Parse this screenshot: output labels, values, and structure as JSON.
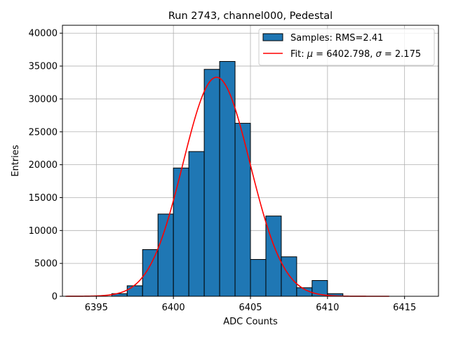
{
  "chart_data": {
    "type": "bar",
    "title": "Run 2743, channel000, Pedestal",
    "xlabel": "ADC Counts",
    "ylabel": "Entries",
    "xlim": [
      6392.8,
      6417.2
    ],
    "ylim": [
      0,
      41200
    ],
    "grid": true,
    "xticks": [
      6395,
      6400,
      6405,
      6410,
      6415
    ],
    "xtick_labels": [
      "6395",
      "6400",
      "6405",
      "6410",
      "6415"
    ],
    "yticks": [
      0,
      5000,
      10000,
      15000,
      20000,
      25000,
      30000,
      35000,
      40000
    ],
    "ytick_labels": [
      "0",
      "5000",
      "10000",
      "15000",
      "20000",
      "25000",
      "30000",
      "35000",
      "40000"
    ],
    "bin_edges": [
      6395,
      6396,
      6397,
      6398,
      6399,
      6400,
      6401,
      6402,
      6403,
      6404,
      6405,
      6406,
      6407,
      6408,
      6409,
      6410,
      6411
    ],
    "bin_values": [
      0,
      400,
      1600,
      7100,
      12500,
      19500,
      22000,
      34500,
      35700,
      26300,
      5600,
      12200,
      6000,
      1300,
      2400,
      400
    ],
    "bar_color": "#1f77b4",
    "fit": {
      "mu": 6402.798,
      "sigma": 2.175,
      "amplitude": 33300,
      "x_range": [
        6393,
        6414
      ],
      "color": "#ff0000"
    },
    "legend": {
      "position": "top-right",
      "entries": [
        {
          "label": "Samples: RMS=2.41",
          "kind": "patch"
        },
        {
          "label_parts": [
            "Fit: ",
            "μ",
            " = 6402.798, ",
            "σ",
            " = 2.175"
          ],
          "kind": "line"
        }
      ]
    }
  }
}
